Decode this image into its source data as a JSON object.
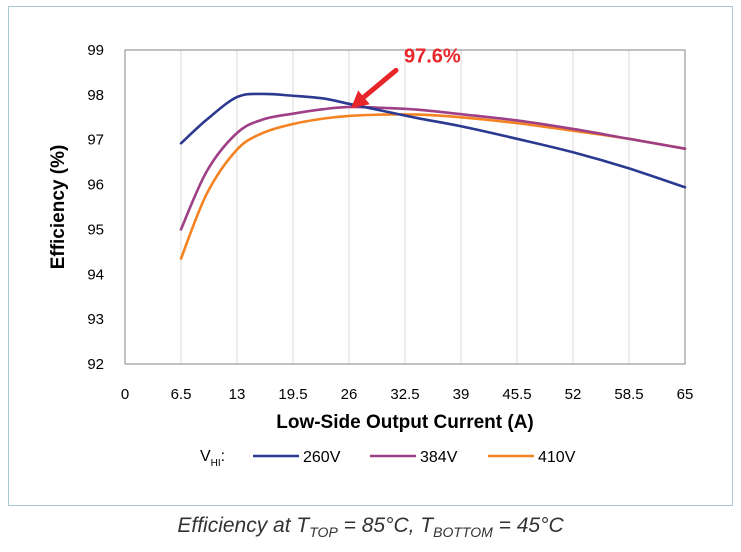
{
  "chart_data": {
    "type": "line",
    "xlabel": "Low-Side Output Current (A)",
    "ylabel": "Efficiency (%)",
    "xlim": [
      0,
      65
    ],
    "ylim": [
      92,
      99
    ],
    "x_ticks": [
      0,
      6.5,
      13,
      19.5,
      26,
      32.5,
      39,
      45.5,
      52,
      58.5,
      65
    ],
    "x_tick_labels": [
      "0",
      "6.5",
      "13",
      "19.5",
      "26",
      "32.5",
      "39",
      "45.5",
      "52",
      "58.5",
      "65"
    ],
    "y_ticks": [
      92,
      93,
      94,
      95,
      96,
      97,
      98,
      99
    ],
    "y_tick_labels": [
      "92",
      "93",
      "94",
      "95",
      "96",
      "97",
      "98",
      "99"
    ],
    "grid": "vertical",
    "legend_title": "V",
    "legend_title_sub": "HI",
    "legend_title_suffix": ":",
    "legend_position": "bottom",
    "series": [
      {
        "name": "260V",
        "color": "#2b3990",
        "x": [
          6.5,
          9.5,
          13,
          16,
          19.5,
          23,
          26,
          30,
          34,
          39,
          45.5,
          52,
          58.5,
          65
        ],
        "y": [
          96.92,
          97.45,
          97.95,
          98.02,
          97.98,
          97.92,
          97.8,
          97.64,
          97.48,
          97.3,
          97.02,
          96.72,
          96.36,
          95.94
        ]
      },
      {
        "name": "384V",
        "color": "#9e3f87",
        "x": [
          6.5,
          9.5,
          13,
          16,
          19.5,
          23,
          26,
          30,
          34,
          39,
          45.5,
          52,
          58.5,
          65
        ],
        "y": [
          95.0,
          96.3,
          97.15,
          97.45,
          97.58,
          97.68,
          97.73,
          97.71,
          97.67,
          97.57,
          97.43,
          97.24,
          97.02,
          96.8
        ]
      },
      {
        "name": "410V",
        "color": "#f58220",
        "x": [
          6.5,
          9.5,
          13,
          16,
          19.5,
          23,
          26,
          30,
          34,
          39,
          45.5,
          52,
          58.5,
          65
        ],
        "y": [
          94.35,
          95.8,
          96.78,
          97.15,
          97.35,
          97.47,
          97.53,
          97.56,
          97.56,
          97.5,
          97.37,
          97.2,
          97.02,
          96.8
        ]
      }
    ],
    "annotations": [
      {
        "text": "97.6%",
        "x": 26,
        "y": 97.7,
        "color": "#e8262a"
      }
    ]
  },
  "caption": {
    "prefix": "Efficiency at T",
    "top_sub": "TOP",
    "middle": " = 85°C, T",
    "bottom_sub": "BOTTOM",
    "suffix": " = 45°C"
  }
}
